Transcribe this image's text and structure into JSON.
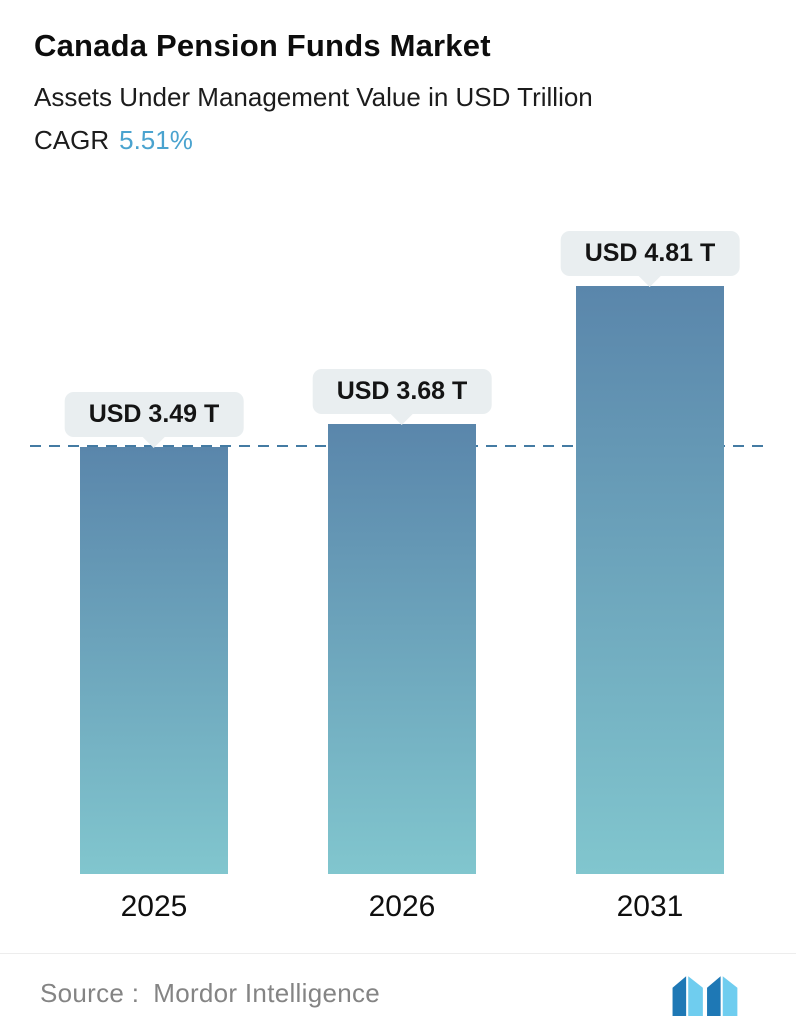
{
  "header": {
    "title": "Canada Pension Funds Market",
    "subtitle": "Assets Under Management Value in USD Trillion",
    "cagr_label": "CAGR",
    "cagr_value": "5.51%"
  },
  "chart_data": {
    "type": "bar",
    "title": "Canada Pension Funds Market",
    "subtitle": "Assets Under Management Value in USD Trillion",
    "categories": [
      "2025",
      "2026",
      "2031"
    ],
    "values": [
      3.49,
      3.68,
      4.81
    ],
    "value_labels": [
      "USD 3.49 T",
      "USD 3.68 T",
      "USD 4.81 T"
    ],
    "unit": "USD Trillion",
    "cagr": "5.51%",
    "ylim": [
      0,
      5.3
    ],
    "grid": false,
    "legend": false,
    "reference_line": {
      "value": 3.49,
      "style": "dashed"
    }
  },
  "footer": {
    "source_label": "Source :",
    "source_value": "Mordor Intelligence"
  },
  "colors": {
    "accent": "#4aa3cf",
    "tooltip_bg": "#e9eef0",
    "bar_gradient_top": "#5a86ab",
    "bar_gradient_bottom": "#81c6ce",
    "reference_line": "#447ba3",
    "logo_dark": "#1e78b5",
    "logo_light": "#6fcdef"
  }
}
